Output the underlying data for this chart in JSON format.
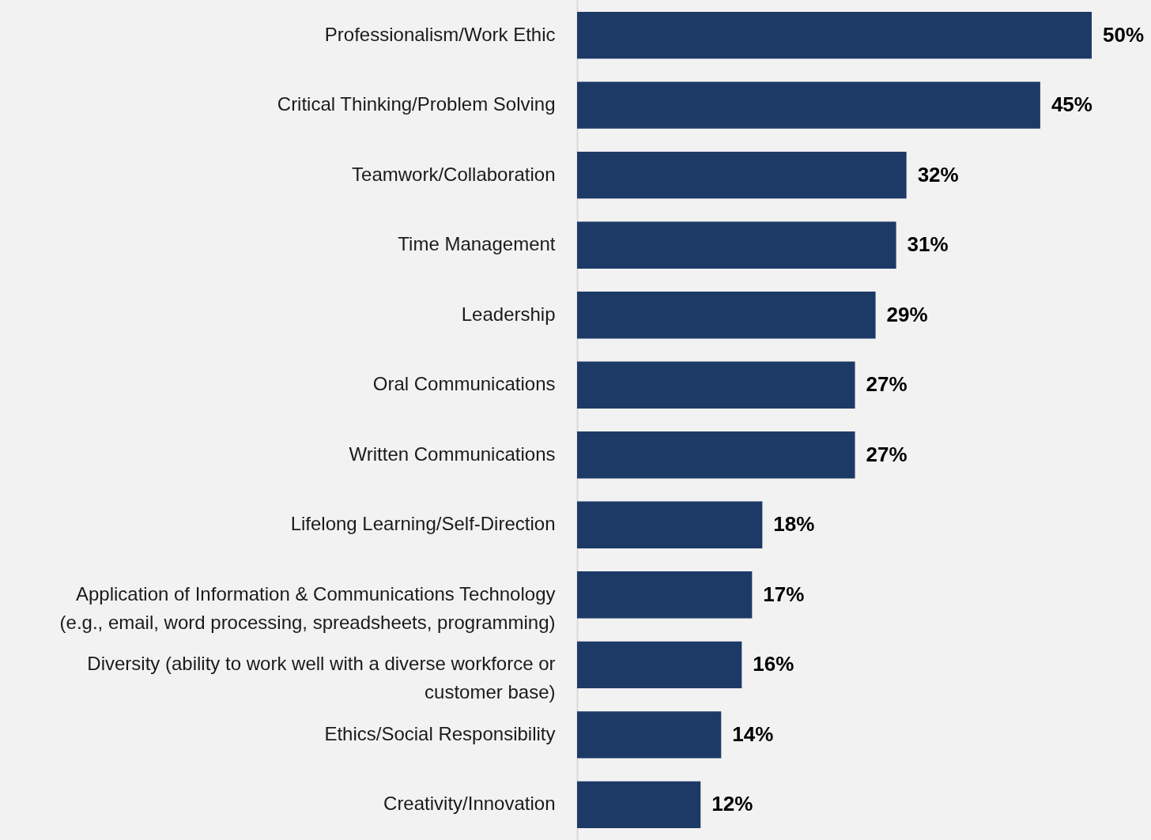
{
  "chart_data": {
    "type": "bar",
    "orientation": "horizontal",
    "categories": [
      "Professionalism/Work Ethic",
      "Critical Thinking/Problem Solving",
      "Teamwork/Collaboration",
      "Time Management",
      "Leadership",
      "Oral Communications",
      "Written Communications",
      "Lifelong Learning/Self-Direction",
      "Application of Information & Communications Technology (e.g., email, word processing, spreadsheets, programming)",
      "Diversity (ability to work well with a diverse workforce or customer base)",
      "Ethics/Social Responsibility",
      "Creativity/Innovation"
    ],
    "values": [
      50,
      45,
      32,
      31,
      29,
      27,
      27,
      18,
      17,
      16,
      14,
      12
    ],
    "value_labels": [
      "50%",
      "45%",
      "32%",
      "31%",
      "29%",
      "27%",
      "27%",
      "18%",
      "17%",
      "16%",
      "14%",
      "12%"
    ],
    "color": "#1d3a67",
    "xlim": [
      0,
      50
    ],
    "tick_labels": "y",
    "grid": false
  }
}
